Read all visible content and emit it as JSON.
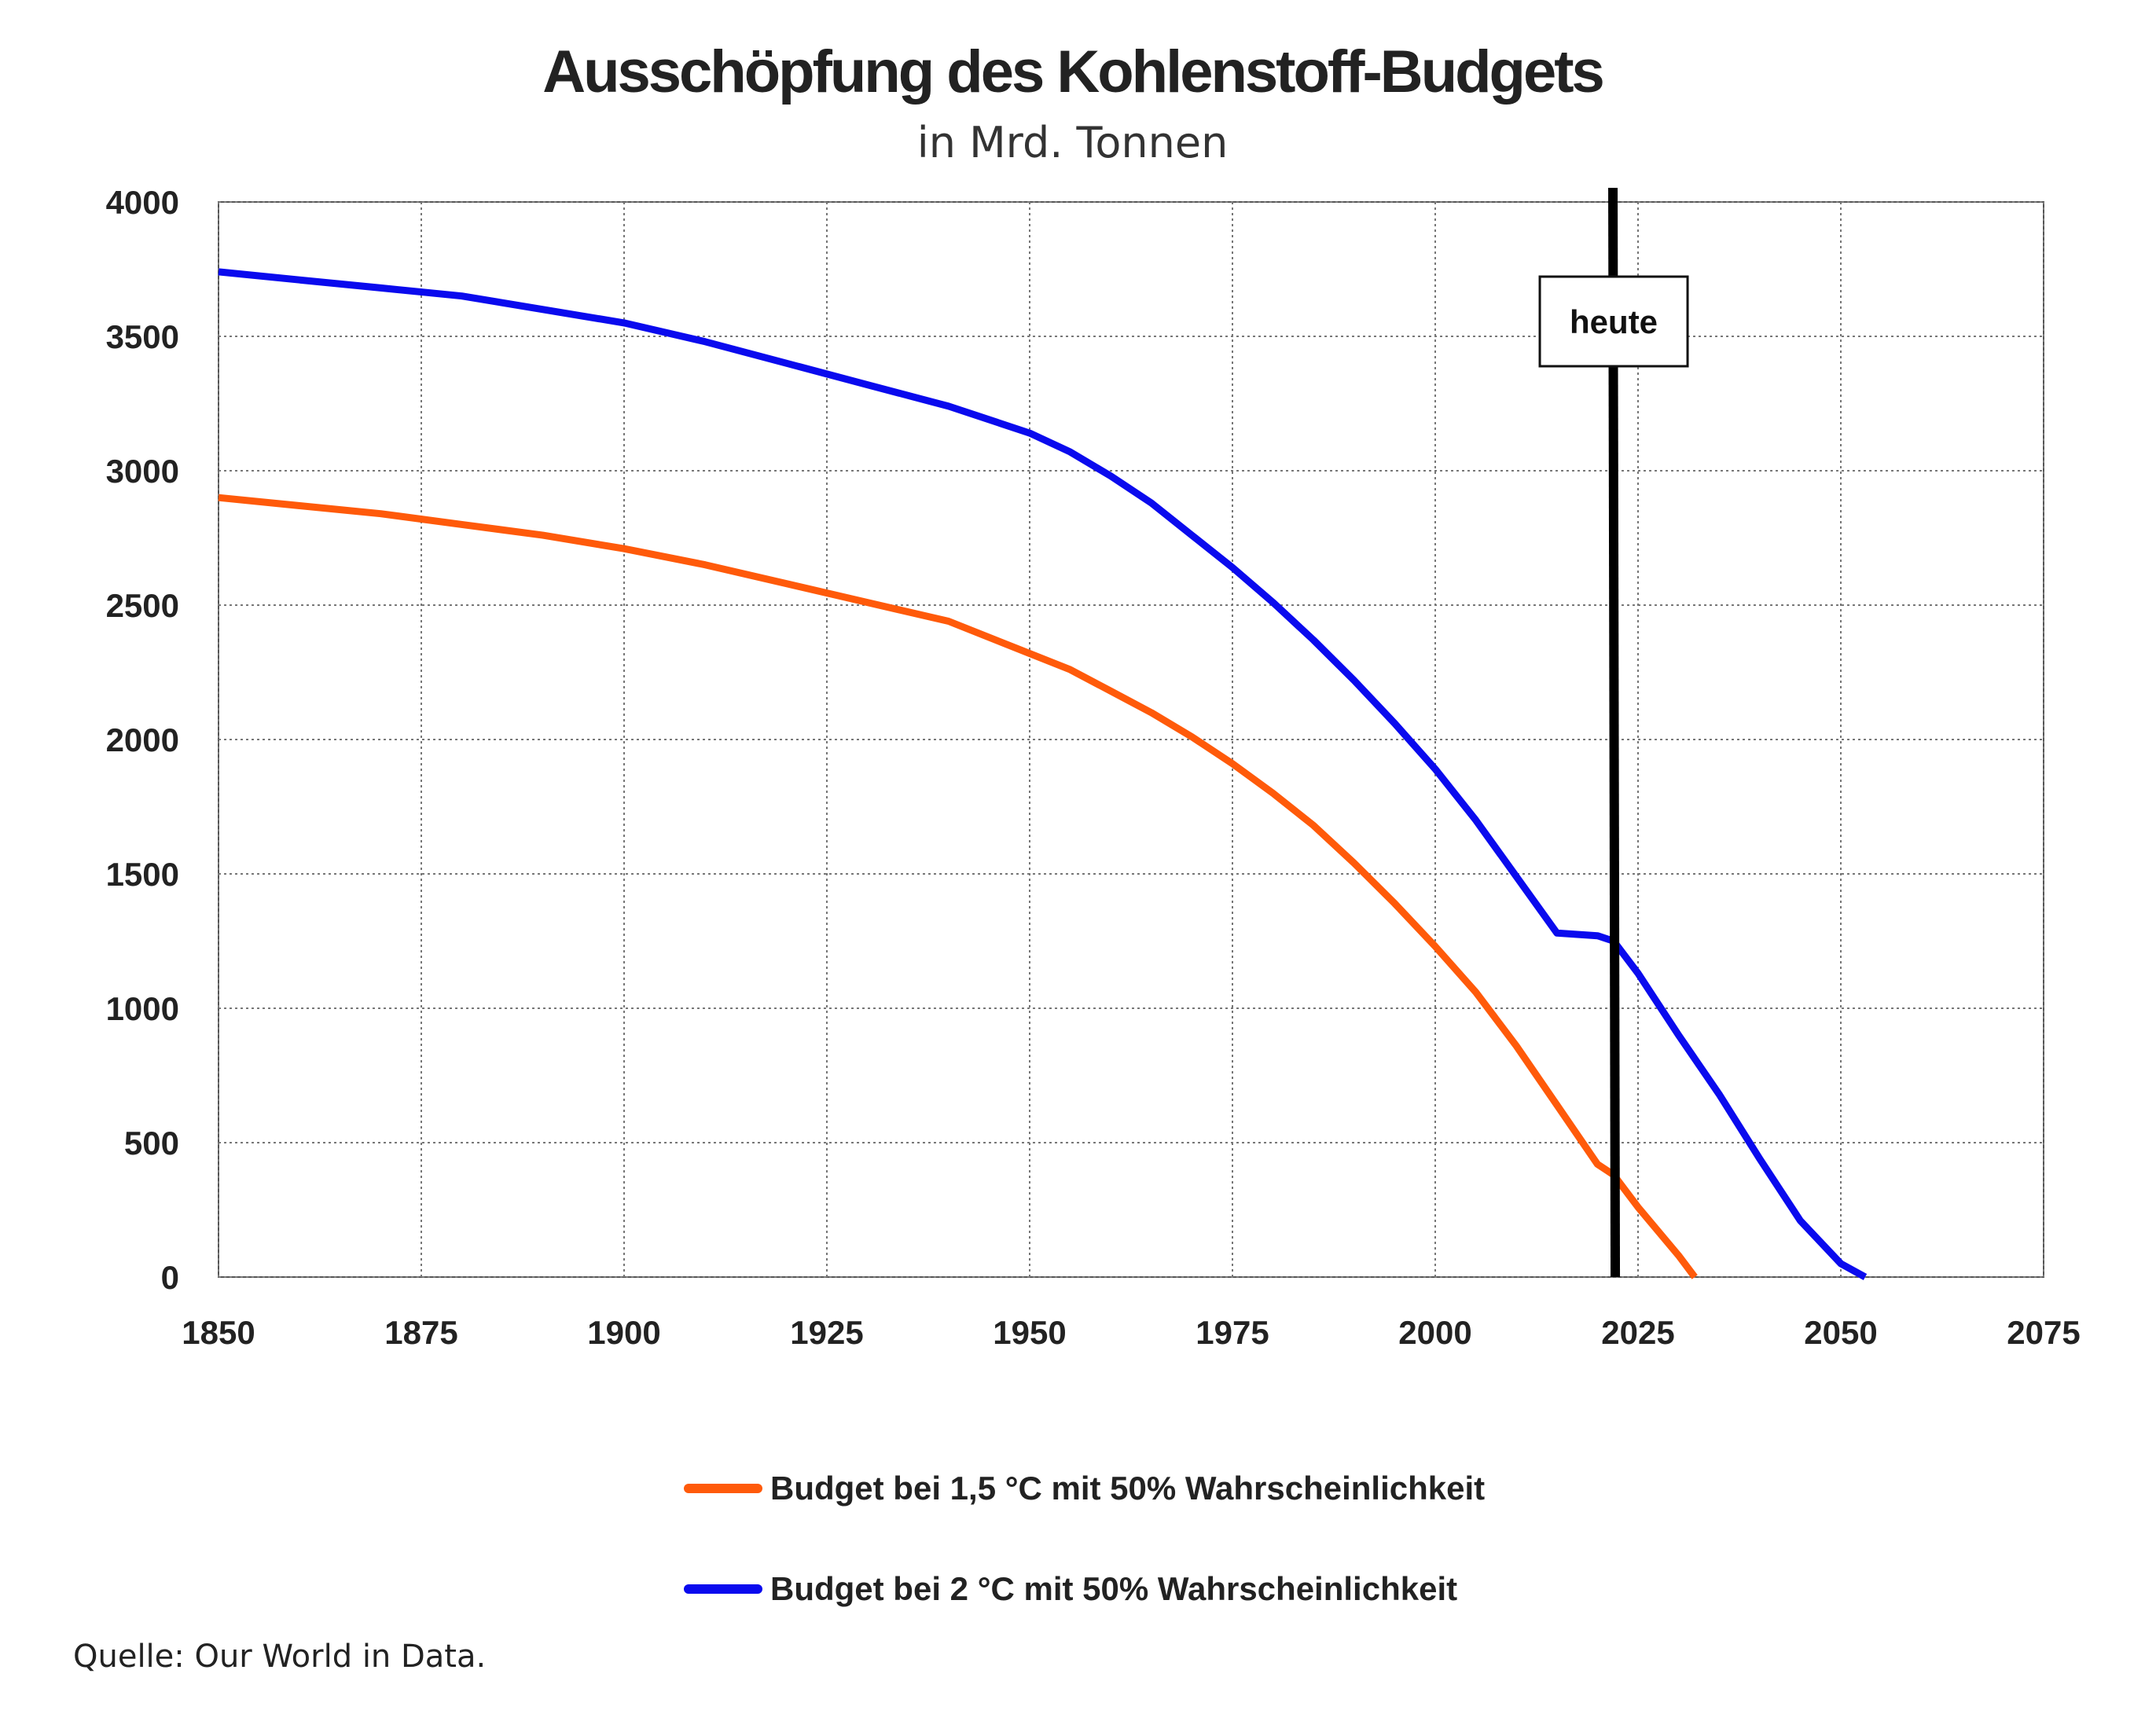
{
  "chart_data": {
    "type": "line",
    "title": "Ausschöpfung des Kohlenstoff-Budgets",
    "subtitle": "in Mrd. Tonnen",
    "xlabel": "",
    "ylabel": "",
    "xlim": [
      1850,
      2075
    ],
    "ylim": [
      0,
      4000
    ],
    "x_ticks": [
      1850,
      1875,
      1900,
      1925,
      1950,
      1975,
      2000,
      2025,
      2050,
      2075
    ],
    "y_ticks": [
      0,
      500,
      1000,
      1500,
      2000,
      2500,
      3000,
      3500,
      4000
    ],
    "grid": true,
    "legend_position": "bottom",
    "series": [
      {
        "name": "Budget bei 1,5 °C mit 50% Wahrscheinlichkeit",
        "color": "#ff5a0a",
        "x": [
          1850,
          1860,
          1870,
          1880,
          1890,
          1900,
          1910,
          1920,
          1930,
          1940,
          1950,
          1955,
          1960,
          1965,
          1970,
          1975,
          1980,
          1985,
          1990,
          1995,
          2000,
          2005,
          2010,
          2015,
          2020,
          2022,
          2025,
          2030,
          2032
        ],
        "values": [
          2900,
          2870,
          2840,
          2800,
          2760,
          2710,
          2650,
          2580,
          2510,
          2440,
          2320,
          2260,
          2180,
          2100,
          2010,
          1910,
          1800,
          1680,
          1540,
          1390,
          1230,
          1060,
          860,
          640,
          420,
          380,
          260,
          80,
          0
        ]
      },
      {
        "name": "Budget bei 2 °C mit 50% Wahrscheinlichkeit",
        "color": "#0a0aee",
        "x": [
          1850,
          1860,
          1870,
          1880,
          1890,
          1900,
          1910,
          1920,
          1930,
          1940,
          1950,
          1955,
          1960,
          1965,
          1970,
          1975,
          1980,
          1985,
          1990,
          1995,
          2000,
          2005,
          2010,
          2015,
          2020,
          2022,
          2025,
          2030,
          2035,
          2040,
          2045,
          2050,
          2053
        ],
        "values": [
          3740,
          3710,
          3680,
          3650,
          3600,
          3550,
          3480,
          3400,
          3320,
          3240,
          3140,
          3070,
          2980,
          2880,
          2760,
          2640,
          2510,
          2370,
          2220,
          2060,
          1890,
          1700,
          1490,
          1280,
          1270,
          1250,
          1130,
          900,
          680,
          440,
          210,
          50,
          0
        ]
      }
    ],
    "annotations": [
      {
        "type": "vline",
        "x": 2022,
        "label": "heute"
      }
    ]
  },
  "source": "Quelle: Our World in Data."
}
